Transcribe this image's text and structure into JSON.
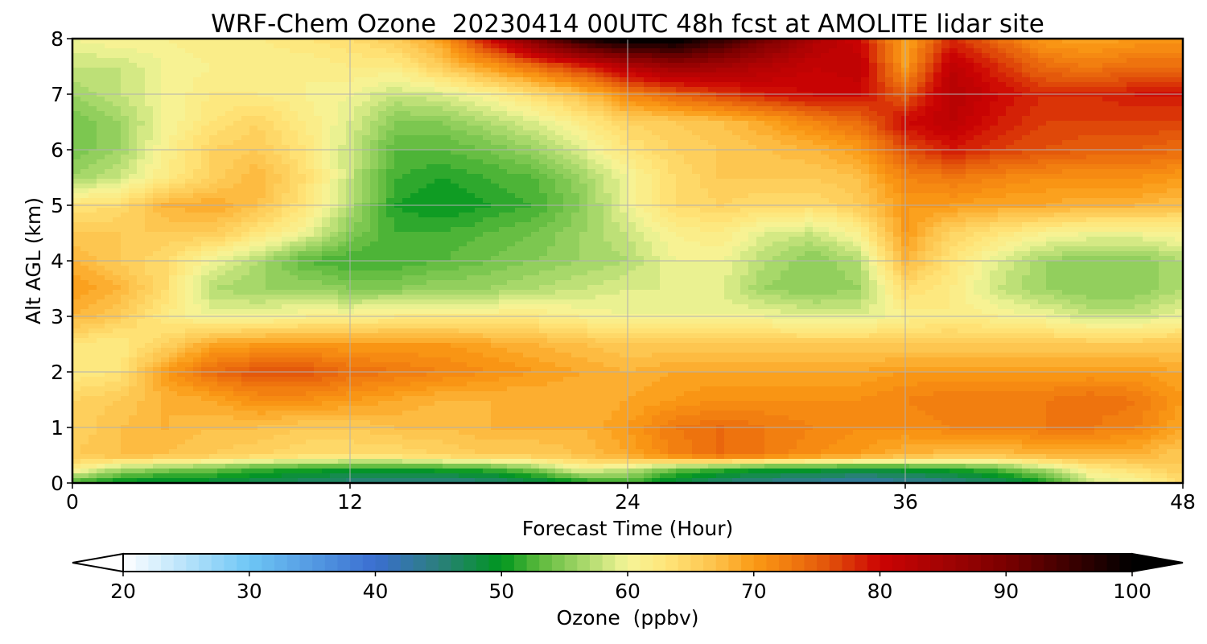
{
  "chart_data": {
    "type": "heatmap",
    "title": "WRF-Chem Ozone  20230414 00UTC 48h fcst at AMOLITE lidar site",
    "xlabel": "Forecast Time (Hour)",
    "ylabel": "Alt AGL (km)",
    "xlim": [
      0,
      48
    ],
    "ylim": [
      0,
      8
    ],
    "xticks": [
      0,
      12,
      24,
      36,
      48
    ],
    "yticks": [
      0,
      1,
      2,
      3,
      4,
      5,
      6,
      7,
      8
    ],
    "grid": true,
    "x": [
      0,
      2,
      4,
      6,
      8,
      10,
      12,
      14,
      16,
      18,
      20,
      22,
      24,
      26,
      28,
      30,
      32,
      34,
      36,
      38,
      40,
      42,
      44,
      46,
      48
    ],
    "y": [
      0,
      0.25,
      0.5,
      1,
      1.5,
      2,
      2.5,
      3,
      3.5,
      4,
      4.5,
      5,
      5.5,
      6,
      6.5,
      7,
      7.5,
      8
    ],
    "z_units": "ppbv",
    "z": [
      [
        52,
        49,
        48,
        48,
        47,
        46,
        45,
        44,
        44,
        45,
        47,
        50,
        52,
        48,
        45,
        44,
        43,
        42,
        43,
        44,
        46,
        50,
        58,
        60,
        64
      ],
      [
        62,
        57,
        55,
        54,
        52,
        51,
        50,
        50,
        51,
        52,
        55,
        60,
        58,
        54,
        52,
        50,
        50,
        49,
        50,
        51,
        53,
        57,
        62,
        64,
        66
      ],
      [
        66,
        67,
        67,
        66,
        65,
        64,
        64,
        64,
        65,
        66,
        66,
        67,
        69,
        72,
        74,
        73,
        71,
        70,
        68,
        67,
        67,
        68,
        68,
        68,
        66
      ],
      [
        65,
        67,
        68,
        67,
        67,
        66,
        66,
        67,
        67,
        68,
        68,
        68,
        70,
        73,
        74,
        73,
        72,
        71,
        71,
        72,
        72,
        73,
        73,
        72,
        69
      ],
      [
        65,
        66,
        68,
        69,
        71,
        71,
        70,
        69,
        68,
        68,
        68,
        68,
        69,
        70,
        71,
        71,
        71,
        71,
        72,
        73,
        73,
        73,
        74,
        73,
        70
      ],
      [
        62,
        63,
        70,
        74,
        76,
        76,
        74,
        73,
        72,
        71,
        70,
        69,
        68,
        69,
        69,
        69,
        69,
        69,
        70,
        70,
        70,
        70,
        70,
        70,
        69
      ],
      [
        63,
        62,
        65,
        69,
        70,
        70,
        70,
        70,
        70,
        69,
        68,
        67,
        66,
        66,
        66,
        66,
        66,
        66,
        66,
        66,
        66,
        66,
        66,
        66,
        66
      ],
      [
        68,
        66,
        62,
        60,
        60,
        61,
        61,
        62,
        62,
        62,
        62,
        61,
        60,
        60,
        60,
        60,
        59,
        59,
        61,
        62,
        61,
        60,
        58,
        58,
        60
      ],
      [
        70,
        68,
        64,
        57,
        56,
        56,
        55,
        55,
        56,
        56,
        57,
        58,
        59,
        59,
        59,
        56,
        55,
        56,
        64,
        62,
        58,
        56,
        55,
        55,
        57
      ],
      [
        68,
        66,
        64,
        60,
        57,
        53,
        52,
        52,
        53,
        54,
        55,
        56,
        57,
        60,
        60,
        57,
        55,
        57,
        68,
        63,
        59,
        56,
        55,
        55,
        57
      ],
      [
        66,
        66,
        66,
        66,
        63,
        60,
        55,
        52,
        52,
        53,
        54,
        56,
        58,
        61,
        62,
        59,
        58,
        61,
        70,
        65,
        63,
        61,
        60,
        60,
        61
      ],
      [
        63,
        64,
        68,
        69,
        67,
        63,
        57,
        51,
        50,
        51,
        52,
        55,
        60,
        64,
        65,
        64,
        64,
        66,
        70,
        70,
        69,
        69,
        68,
        68,
        67
      ],
      [
        56,
        58,
        62,
        65,
        68,
        64,
        58,
        52,
        51,
        52,
        53,
        56,
        60,
        64,
        66,
        66,
        66,
        67,
        72,
        73,
        72,
        71,
        71,
        71,
        70
      ],
      [
        54,
        56,
        61,
        65,
        66,
        63,
        58,
        53,
        53,
        54,
        56,
        59,
        63,
        65,
        66,
        67,
        68,
        70,
        76,
        79,
        77,
        76,
        75,
        75,
        74
      ],
      [
        54,
        56,
        60,
        63,
        65,
        62,
        59,
        55,
        55,
        57,
        59,
        62,
        65,
        66,
        67,
        69,
        72,
        74,
        80,
        82,
        79,
        77,
        77,
        77,
        77
      ],
      [
        56,
        58,
        60,
        62,
        62,
        61,
        60,
        58,
        59,
        61,
        64,
        67,
        72,
        75,
        77,
        79,
        80,
        80,
        75,
        83,
        80,
        78,
        78,
        79,
        79
      ],
      [
        58,
        58,
        60,
        61,
        61,
        61,
        62,
        62,
        66,
        70,
        74,
        78,
        83,
        86,
        85,
        83,
        81,
        82,
        70,
        82,
        78,
        74,
        73,
        74,
        74
      ],
      [
        60,
        61,
        61,
        62,
        62,
        63,
        64,
        66,
        70,
        80,
        90,
        98,
        101,
        101,
        96,
        90,
        84,
        80,
        69,
        78,
        74,
        70,
        69,
        70,
        70
      ]
    ],
    "colorbar": {
      "label": "Ozone  (ppbv)",
      "min": 20,
      "max": 100,
      "ticks": [
        20,
        30,
        40,
        50,
        60,
        70,
        80,
        90,
        100
      ],
      "extend": "both",
      "colormap_anchors": [
        {
          "v": 20,
          "color": "#ffffff"
        },
        {
          "v": 30,
          "color": "#6ec6f5"
        },
        {
          "v": 40,
          "color": "#3a6ed0"
        },
        {
          "v": 45,
          "color": "#2b7f7d"
        },
        {
          "v": 50,
          "color": "#00961e"
        },
        {
          "v": 53,
          "color": "#5cba3c"
        },
        {
          "v": 57,
          "color": "#b2dc70"
        },
        {
          "v": 60,
          "color": "#f5f598"
        },
        {
          "v": 63,
          "color": "#ffe57a"
        },
        {
          "v": 67,
          "color": "#fdc24a"
        },
        {
          "v": 70,
          "color": "#fb9a15"
        },
        {
          "v": 73,
          "color": "#f07a0f"
        },
        {
          "v": 76,
          "color": "#e2520a"
        },
        {
          "v": 80,
          "color": "#cc0303"
        },
        {
          "v": 85,
          "color": "#a30303"
        },
        {
          "v": 90,
          "color": "#7a0000"
        },
        {
          "v": 95,
          "color": "#3d0000"
        },
        {
          "v": 100,
          "color": "#000000"
        }
      ]
    }
  }
}
